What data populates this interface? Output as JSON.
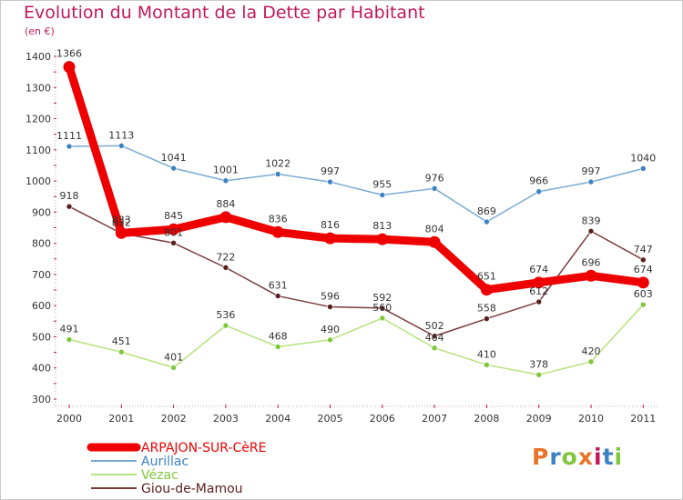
{
  "chart_data": {
    "type": "line",
    "title": "Evolution du Montant de la Dette par Habitant",
    "subtitle": "(en €)",
    "x": [
      "2000",
      "2001",
      "2002",
      "2003",
      "2004",
      "2005",
      "2006",
      "2007",
      "2008",
      "2009",
      "2010",
      "2011"
    ],
    "ylim": [
      300,
      1400
    ],
    "yticks": [
      300,
      400,
      500,
      600,
      700,
      800,
      900,
      1000,
      1100,
      1200,
      1300,
      1400
    ],
    "legend_position": "bottom",
    "grid": false,
    "series": [
      {
        "name": "ARPAJON-SUR-CèRE",
        "color": "#ee0000",
        "marker_color": "#ee0000",
        "emphasis": true,
        "values": [
          1366,
          833,
          845,
          884,
          836,
          816,
          813,
          804,
          651,
          674,
          696,
          674
        ]
      },
      {
        "name": "Aurillac",
        "color": "#7aaad4",
        "marker_color": "#3d82c4",
        "emphasis": false,
        "values": [
          1111,
          1113,
          1041,
          1001,
          1022,
          997,
          955,
          976,
          869,
          966,
          997,
          1040
        ]
      },
      {
        "name": "Vézac",
        "color": "#b6e37e",
        "marker_color": "#7fc63a",
        "emphasis": false,
        "values": [
          491,
          451,
          401,
          536,
          468,
          490,
          560,
          464,
          410,
          378,
          420,
          603
        ]
      },
      {
        "name": "Giou-de-Mamou",
        "color": "#7a3b3b",
        "marker_color": "#5a1e1e",
        "emphasis": false,
        "values": [
          918,
          832,
          801,
          722,
          631,
          596,
          592,
          502,
          558,
          612,
          839,
          747
        ]
      }
    ]
  },
  "logo": {
    "text": "Proxiti",
    "colors": [
      "#e8732a",
      "#3d82c4",
      "#7fc63a",
      "#e8732a",
      "#c2185b",
      "#3d82c4",
      "#7fc63a"
    ]
  }
}
